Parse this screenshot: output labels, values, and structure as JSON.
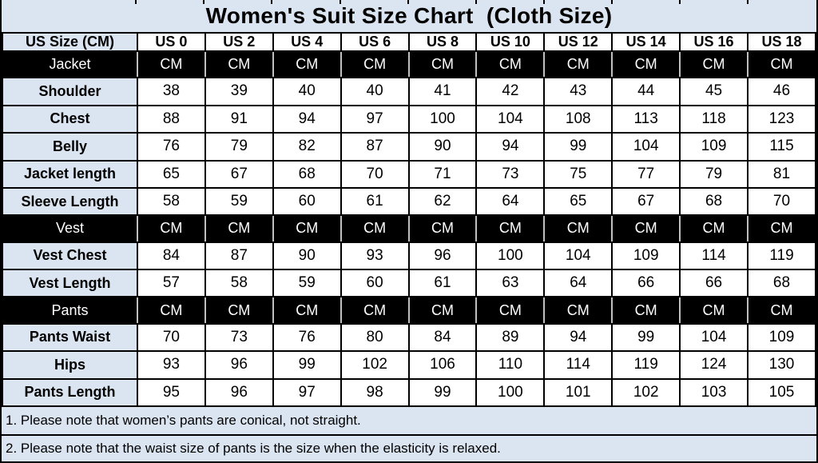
{
  "title": "Women's Suit Size Chart  (Cloth Size)",
  "colors": {
    "panel_bg": "#dbe5f1",
    "section_bg": "#000000",
    "section_text": "#ffffff",
    "cell_bg": "#ffffff",
    "grid": "#000000",
    "section_divider": "#bfbfbf"
  },
  "table": {
    "header": [
      "US Size (CM)",
      "US 0",
      "US 2",
      "US 4",
      "US 6",
      "US 8",
      "US 10",
      "US 12",
      "US 14",
      "US 16",
      "US 18"
    ],
    "rows": [
      {
        "type": "section",
        "label": "Jacket",
        "values": [
          "CM",
          "CM",
          "CM",
          "CM",
          "CM",
          "CM",
          "CM",
          "CM",
          "CM",
          "CM"
        ]
      },
      {
        "type": "data",
        "label": "Shoulder",
        "values": [
          38,
          39,
          40,
          40,
          41,
          42,
          43,
          44,
          45,
          46
        ]
      },
      {
        "type": "data",
        "label": "Chest",
        "values": [
          88,
          91,
          94,
          97,
          100,
          104,
          108,
          113,
          118,
          123
        ]
      },
      {
        "type": "data",
        "label": "Belly",
        "values": [
          76,
          79,
          82,
          87,
          90,
          94,
          99,
          104,
          109,
          115
        ]
      },
      {
        "type": "data",
        "label": "Jacket length",
        "values": [
          65,
          67,
          68,
          70,
          71,
          73,
          75,
          77,
          79,
          81
        ]
      },
      {
        "type": "data",
        "label": "Sleeve Length",
        "values": [
          58,
          59,
          60,
          61,
          62,
          64,
          65,
          67,
          68,
          70
        ]
      },
      {
        "type": "section",
        "label": "Vest",
        "values": [
          "CM",
          "CM",
          "CM",
          "CM",
          "CM",
          "CM",
          "CM",
          "CM",
          "CM",
          "CM"
        ]
      },
      {
        "type": "data",
        "label": "Vest Chest",
        "values": [
          84,
          87,
          90,
          93,
          96,
          100,
          104,
          109,
          114,
          119
        ]
      },
      {
        "type": "data",
        "label": "Vest Length",
        "values": [
          57,
          58,
          59,
          60,
          61,
          63,
          64,
          66,
          66,
          68
        ]
      },
      {
        "type": "section",
        "label": "Pants",
        "values": [
          "CM",
          "CM",
          "CM",
          "CM",
          "CM",
          "CM",
          "CM",
          "CM",
          "CM",
          "CM"
        ]
      },
      {
        "type": "data",
        "label": "Pants Waist",
        "values": [
          70,
          73,
          76,
          80,
          84,
          89,
          94,
          99,
          104,
          109
        ]
      },
      {
        "type": "data",
        "label": "Hips",
        "values": [
          93,
          96,
          99,
          102,
          106,
          110,
          114,
          119,
          124,
          130
        ]
      },
      {
        "type": "data",
        "label": "Pants Length",
        "values": [
          95,
          96,
          97,
          98,
          99,
          100,
          101,
          102,
          103,
          105
        ]
      }
    ]
  },
  "notes": [
    "1. Please note that women’s pants are conical, not straight.",
    "2. Please note that the waist size of pants is the size when the elasticity is relaxed."
  ]
}
